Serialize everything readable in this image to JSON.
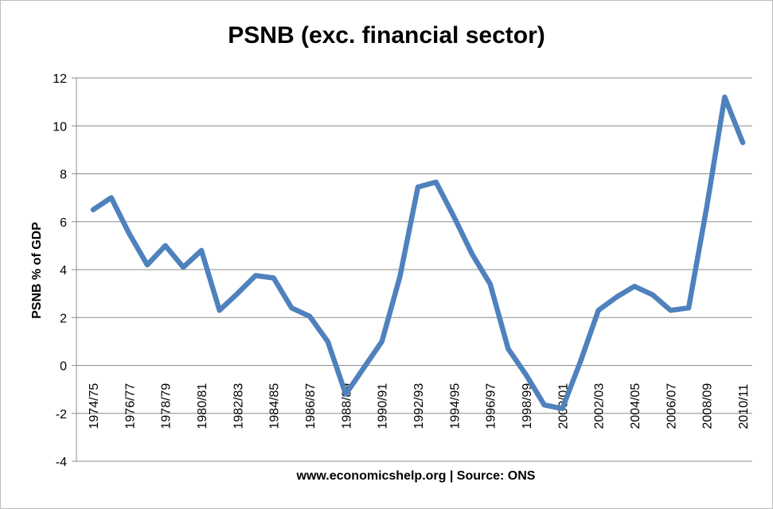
{
  "chart_data": {
    "type": "line",
    "title": "PSNB (exc. financial sector)",
    "ylabel": "PSNB % of GDP",
    "xlabel": "www.economicshelp.org | Source: ONS",
    "ylim": [
      -4,
      12
    ],
    "yticks": [
      -4,
      -2,
      0,
      2,
      4,
      6,
      8,
      10,
      12
    ],
    "grid": true,
    "line_color": "#4F81BD",
    "categories": [
      "1974/75",
      "1975/76",
      "1976/77",
      "1977/78",
      "1978/79",
      "1979/80",
      "1980/81",
      "1981/82",
      "1982/83",
      "1983/84",
      "1984/85",
      "1985/86",
      "1986/87",
      "1987/88",
      "1988/89",
      "1989/90",
      "1990/91",
      "1991/92",
      "1992/93",
      "1993/94",
      "1994/95",
      "1995/96",
      "1996/97",
      "1997/98",
      "1998/99",
      "1999/00",
      "2000/01",
      "2001/02",
      "2002/03",
      "2003/04",
      "2004/05",
      "2005/06",
      "2006/07",
      "2007/08",
      "2008/09",
      "2009/10",
      "2010/11"
    ],
    "tick_labels": [
      "1974/75",
      "1976/77",
      "1978/79",
      "1980/81",
      "1982/83",
      "1984/85",
      "1986/87",
      "1988/89",
      "1990/91",
      "1992/93",
      "1994/95",
      "1996/97",
      "1998/99",
      "2000/01",
      "2002/03",
      "2004/05",
      "2006/07",
      "2008/09",
      "2010/11"
    ],
    "series": [
      {
        "values": [
          6.5,
          7.0,
          5.5,
          4.2,
          5.0,
          4.1,
          4.8,
          2.3,
          3.0,
          3.75,
          3.65,
          2.4,
          2.05,
          1.0,
          -1.2,
          -0.1,
          1.0,
          3.7,
          7.45,
          7.65,
          6.2,
          4.65,
          3.4,
          0.7,
          -0.4,
          -1.65,
          -1.8,
          0.15,
          2.3,
          2.85,
          3.3,
          2.95,
          2.3,
          2.4,
          6.6,
          11.2,
          9.3
        ]
      }
    ]
  }
}
